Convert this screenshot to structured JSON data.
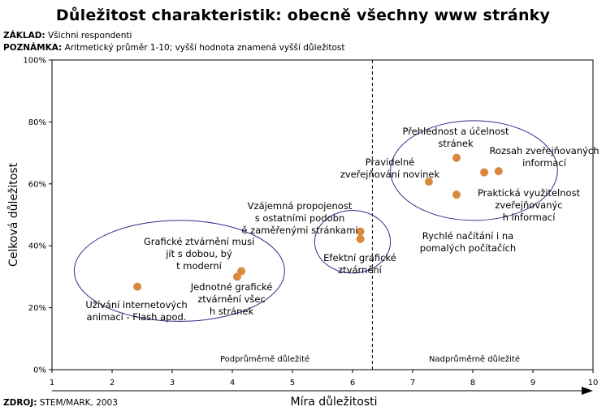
{
  "title": "Důležitost charakteristik: obecně všechny www stránky",
  "basis": {
    "label": "ZÁKLAD:",
    "text": " Všichni respondenti"
  },
  "note": {
    "label": "POZNÁMKA:",
    "text": " Aritmetický průměr 1-10; vyšší hodnota znamená vyšší důležitost"
  },
  "source": {
    "label": "ZDROJ:",
    "text": " STEM/MARK, 2003"
  },
  "chart_data": {
    "type": "scatter",
    "xlabel": "Míra důležitosti",
    "ylabel": "Celková důležitost",
    "xlim": [
      1,
      10
    ],
    "ylim": [
      0,
      100
    ],
    "x_ticks": [
      "1",
      "2",
      "3",
      "4",
      "5",
      "6",
      "7",
      "8",
      "9",
      "10"
    ],
    "y_ticks": [
      "0%",
      "20%",
      "40%",
      "60%",
      "80%",
      "100%"
    ],
    "divider_x": 6.33,
    "zone_labels": {
      "below": "Podprůměrně důležité",
      "above": "Nadprůměrně důležité"
    },
    "marker_color": "#d9883c",
    "ellipse_color": "#2e2e8a",
    "points": [
      {
        "x": 2.42,
        "y": 26.8,
        "label": "Užívání internetových animací - Flash apod."
      },
      {
        "x": 4.15,
        "y": 31.8,
        "label": "Grafické ztvárnění musí jít s dobou, být moderní"
      },
      {
        "x": 4.08,
        "y": 30.0,
        "label": "Jednotné grafické ztvárnění všech stránek"
      },
      {
        "x": 6.13,
        "y": 44.6,
        "label": "Vzájemná propojenost s ostatními podobně zaměřenými stránkami"
      },
      {
        "x": 6.13,
        "y": 42.2,
        "label": "Efektní grafické ztvárnění"
      },
      {
        "x": 7.73,
        "y": 68.4,
        "label": "Přehlednost a účelnost stránek"
      },
      {
        "x": 7.27,
        "y": 60.7,
        "label": "Pravidelné zveřejňování novinek"
      },
      {
        "x": 8.43,
        "y": 64.1,
        "label": "Rozsah zveřejňovaných informací"
      },
      {
        "x": 8.19,
        "y": 63.7,
        "label": "Praktická využitelnost zveřejňovaných informací"
      },
      {
        "x": 7.73,
        "y": 56.5,
        "label": "Rychlé načítání i na pomalých počítačích"
      }
    ],
    "clusters": [
      {
        "cx": 3.12,
        "cy": 31.9,
        "rx": 1.75,
        "ry": 16.3
      },
      {
        "cx": 6.0,
        "cy": 41.3,
        "rx": 0.63,
        "ry": 10.1
      },
      {
        "cx": 8.02,
        "cy": 64.3,
        "rx": 1.39,
        "ry": 16.1
      }
    ]
  }
}
